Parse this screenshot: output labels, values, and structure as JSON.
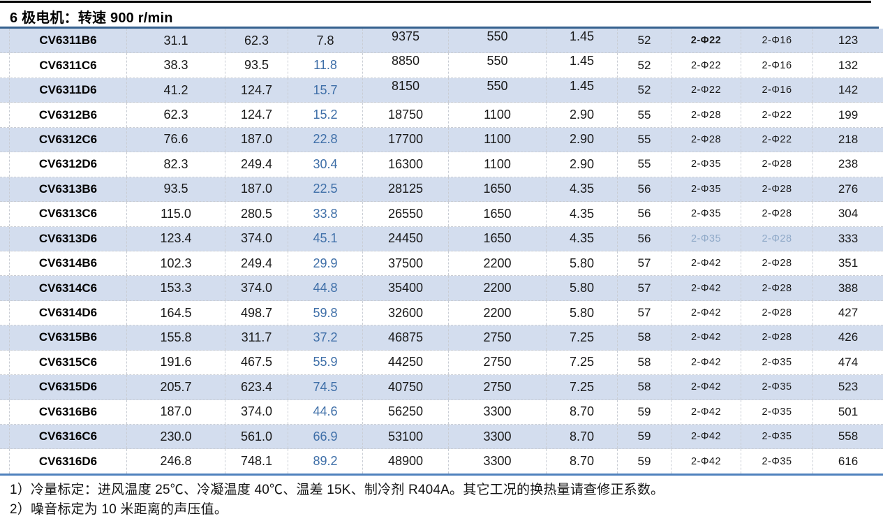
{
  "title": "6 极电机：转速 900 r/min",
  "table": {
    "rows": [
      {
        "model": "CV6311B6",
        "values": [
          "31.1",
          "62.3",
          "7.8",
          "9375",
          "550",
          "1.45",
          "52",
          "2-Φ22",
          "2-Φ16",
          "123"
        ]
      },
      {
        "model": "CV6311C6",
        "values": [
          "38.3",
          "93.5",
          "11.8",
          "8850",
          "550",
          "1.45",
          "52",
          "2-Φ22",
          "2-Φ16",
          "132"
        ]
      },
      {
        "model": "CV6311D6",
        "values": [
          "41.2",
          "124.7",
          "15.7",
          "8150",
          "550",
          "1.45",
          "52",
          "2-Φ22",
          "2-Φ16",
          "142"
        ]
      },
      {
        "model": "CV6312B6",
        "values": [
          "62.3",
          "124.7",
          "15.2",
          "18750",
          "1100",
          "2.90",
          "55",
          "2-Φ28",
          "2-Φ22",
          "199"
        ]
      },
      {
        "model": "CV6312C6",
        "values": [
          "76.6",
          "187.0",
          "22.8",
          "17700",
          "1100",
          "2.90",
          "55",
          "2-Φ28",
          "2-Φ22",
          "218"
        ]
      },
      {
        "model": "CV6312D6",
        "values": [
          "82.3",
          "249.4",
          "30.4",
          "16300",
          "1100",
          "2.90",
          "55",
          "2-Φ35",
          "2-Φ28",
          "238"
        ]
      },
      {
        "model": "CV6313B6",
        "values": [
          "93.5",
          "187.0",
          "22.5",
          "28125",
          "1650",
          "4.35",
          "56",
          "2-Φ35",
          "2-Φ28",
          "276"
        ]
      },
      {
        "model": "CV6313C6",
        "values": [
          "115.0",
          "280.5",
          "33.8",
          "26550",
          "1650",
          "4.35",
          "56",
          "2-Φ35",
          "2-Φ28",
          "304"
        ]
      },
      {
        "model": "CV6313D6",
        "values": [
          "123.4",
          "374.0",
          "45.1",
          "24450",
          "1650",
          "4.35",
          "56",
          "2-Φ35",
          "2-Φ28",
          "333"
        ]
      },
      {
        "model": "CV6314B6",
        "values": [
          "102.3",
          "249.4",
          "29.9",
          "37500",
          "2200",
          "5.80",
          "57",
          "2-Φ42",
          "2-Φ28",
          "351"
        ]
      },
      {
        "model": "CV6314C6",
        "values": [
          "153.3",
          "374.0",
          "44.8",
          "35400",
          "2200",
          "5.80",
          "57",
          "2-Φ42",
          "2-Φ28",
          "388"
        ]
      },
      {
        "model": "CV6314D6",
        "values": [
          "164.5",
          "498.7",
          "59.8",
          "32600",
          "2200",
          "5.80",
          "57",
          "2-Φ42",
          "2-Φ28",
          "427"
        ]
      },
      {
        "model": "CV6315B6",
        "values": [
          "155.8",
          "311.7",
          "37.2",
          "46875",
          "2750",
          "7.25",
          "58",
          "2-Φ42",
          "2-Φ28",
          "426"
        ]
      },
      {
        "model": "CV6315C6",
        "values": [
          "191.6",
          "467.5",
          "55.9",
          "44250",
          "2750",
          "7.25",
          "58",
          "2-Φ42",
          "2-Φ35",
          "474"
        ]
      },
      {
        "model": "CV6315D6",
        "values": [
          "205.7",
          "623.4",
          "74.5",
          "40750",
          "2750",
          "7.25",
          "58",
          "2-Φ42",
          "2-Φ35",
          "523"
        ]
      },
      {
        "model": "CV6316B6",
        "values": [
          "187.0",
          "374.0",
          "44.6",
          "56250",
          "3300",
          "8.70",
          "59",
          "2-Φ42",
          "2-Φ35",
          "501"
        ]
      },
      {
        "model": "CV6316C6",
        "values": [
          "230.0",
          "561.0",
          "66.9",
          "53100",
          "3300",
          "8.70",
          "59",
          "2-Φ42",
          "2-Φ35",
          "558"
        ]
      },
      {
        "model": "CV6316D6",
        "values": [
          "246.8",
          "748.1",
          "89.2",
          "48900",
          "3300",
          "8.70",
          "59",
          "2-Φ42",
          "2-Φ35",
          "616"
        ]
      }
    ],
    "style_hints": {
      "shaded_row_indices": [
        0,
        2,
        4,
        6,
        8,
        10,
        12,
        14,
        16
      ],
      "blue_value_column": 2,
      "blue_value_rows": [
        1,
        2,
        3,
        4,
        5,
        6,
        7,
        8,
        9,
        10,
        11,
        12,
        13,
        14,
        15,
        16,
        17
      ],
      "bold_cells": [
        [
          0,
          7
        ]
      ],
      "muted_cells": [
        [
          8,
          7
        ],
        [
          8,
          8
        ]
      ],
      "raised_cells_rows": [
        0,
        1,
        2
      ],
      "raised_cells_columns": [
        3,
        4,
        5
      ]
    }
  },
  "notes": [
    "1）冷量标定：进风温度 25℃、冷凝温度 40℃、温差 15K、制冷剂 R404A。其它工况的换热量请查修正系数。",
    "2）噪音标定为 10 米距离的声压值。"
  ],
  "colors": {
    "band": "#d3ddee",
    "blue_text": "#3f6fa8",
    "muted_text": "#8fa9c8",
    "title_underline": "#35618f",
    "bottom_border": "#4f81bd",
    "top_border": "#000000"
  }
}
